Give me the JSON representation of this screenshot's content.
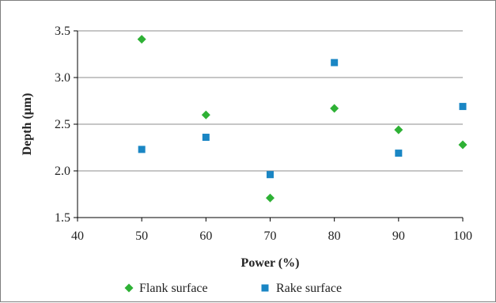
{
  "chart_data": {
    "type": "scatter",
    "title": "",
    "xlabel": "Power (%)",
    "ylabel": "Depth (μm)",
    "xlim": [
      40,
      100
    ],
    "ylim": [
      1.5,
      3.5
    ],
    "xticks": [
      40,
      50,
      60,
      70,
      80,
      90,
      100
    ],
    "yticks": [
      1.5,
      2.0,
      2.5,
      3.0,
      3.5
    ],
    "xtick_labels": [
      "40",
      "50",
      "60",
      "70",
      "80",
      "90",
      "100"
    ],
    "ytick_labels": [
      "1.5",
      "2.0",
      "2.5",
      "3.0",
      "3.5"
    ],
    "grid": "horizontal",
    "legend_position": "bottom",
    "series": [
      {
        "name": "Flank surface",
        "marker": "diamond",
        "color": "#2eb135",
        "x": [
          50,
          60,
          70,
          80,
          90,
          100
        ],
        "y": [
          3.41,
          2.6,
          1.71,
          2.67,
          2.44,
          2.28
        ]
      },
      {
        "name": "Rake surface",
        "marker": "square",
        "color": "#1a86c4",
        "x": [
          50,
          60,
          70,
          80,
          90,
          100
        ],
        "y": [
          2.23,
          2.36,
          1.96,
          3.16,
          2.19,
          2.69
        ]
      }
    ]
  }
}
